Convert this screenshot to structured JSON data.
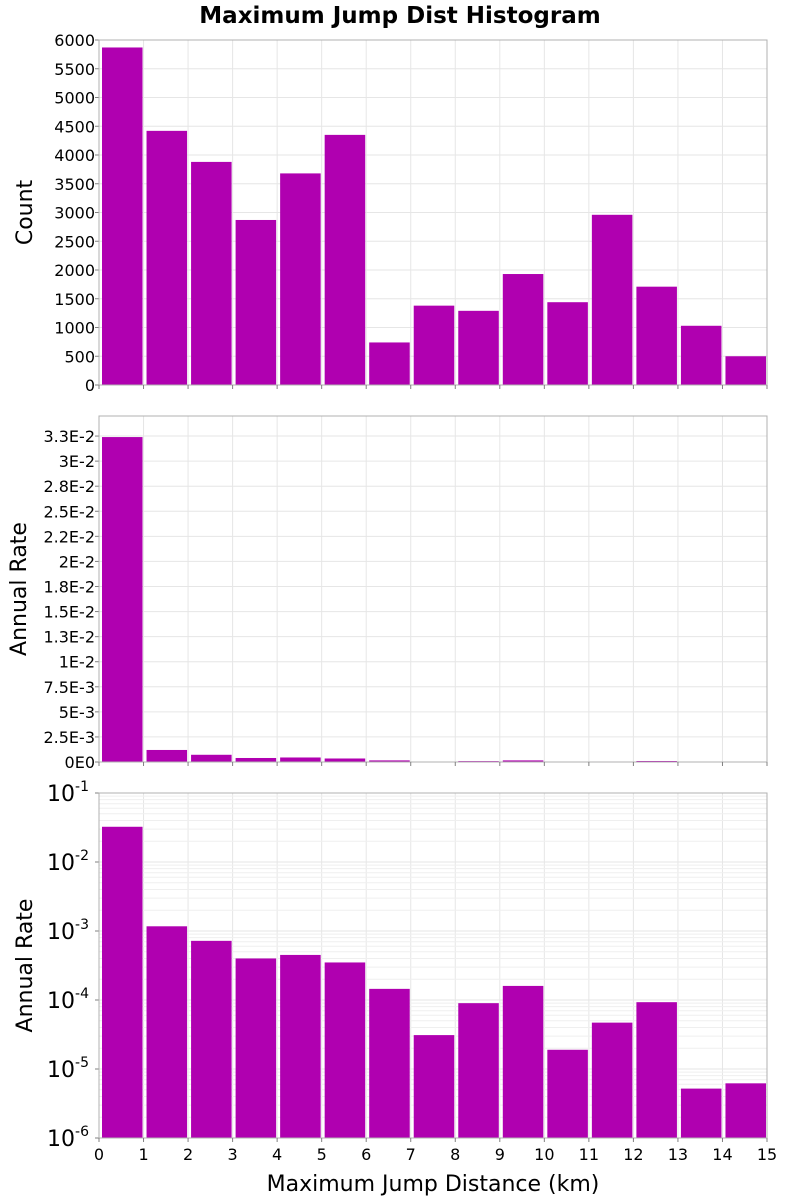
{
  "chart_data": {
    "title": "Maximum Jump Dist Histogram",
    "xlabel": "Maximum Jump Distance (km)",
    "bar_color": "#b000b0",
    "x_ticks": [
      "0",
      "1",
      "2",
      "3",
      "4",
      "5",
      "6",
      "7",
      "8",
      "9",
      "10",
      "11",
      "12",
      "13",
      "14",
      "15"
    ],
    "bin_starts_km": [
      0,
      1,
      2,
      3,
      4,
      5,
      6,
      7,
      8,
      9,
      10,
      11,
      12,
      13,
      14
    ],
    "bin_width_km": 1,
    "xlim": [
      0,
      15
    ],
    "grid": true,
    "panels": [
      {
        "type": "bar",
        "ylabel": "Count",
        "scale": "linear",
        "ylim": [
          0,
          6000
        ],
        "y_ticks": [
          {
            "value": 0,
            "label": "0"
          },
          {
            "value": 500,
            "label": "500"
          },
          {
            "value": 1000,
            "label": "1000"
          },
          {
            "value": 1500,
            "label": "1500"
          },
          {
            "value": 2000,
            "label": "2000"
          },
          {
            "value": 2500,
            "label": "2500"
          },
          {
            "value": 3000,
            "label": "3000"
          },
          {
            "value": 3500,
            "label": "3500"
          },
          {
            "value": 4000,
            "label": "4000"
          },
          {
            "value": 4500,
            "label": "4500"
          },
          {
            "value": 5000,
            "label": "5000"
          },
          {
            "value": 5500,
            "label": "5500"
          },
          {
            "value": 6000,
            "label": "6000"
          }
        ],
        "values": [
          5870,
          4420,
          3880,
          2870,
          3680,
          4350,
          740,
          1380,
          1290,
          1930,
          1440,
          2960,
          1710,
          1030,
          500
        ]
      },
      {
        "type": "bar",
        "ylabel": "Annual Rate",
        "scale": "linear",
        "ylim": [
          0,
          0.0345
        ],
        "y_ticks": [
          {
            "value": 0,
            "label": "0E0"
          },
          {
            "value": 0.0025,
            "label": "2.5E-3"
          },
          {
            "value": 0.005,
            "label": "5E-3"
          },
          {
            "value": 0.0075,
            "label": "7.5E-3"
          },
          {
            "value": 0.01,
            "label": "1E-2"
          },
          {
            "value": 0.0125,
            "label": "1.3E-2"
          },
          {
            "value": 0.015,
            "label": "1.5E-2"
          },
          {
            "value": 0.0175,
            "label": "1.8E-2"
          },
          {
            "value": 0.02,
            "label": "2E-2"
          },
          {
            "value": 0.0225,
            "label": "2.2E-2"
          },
          {
            "value": 0.025,
            "label": "2.5E-2"
          },
          {
            "value": 0.0275,
            "label": "2.8E-2"
          },
          {
            "value": 0.03,
            "label": "3E-2"
          },
          {
            "value": 0.0325,
            "label": "3.3E-2"
          }
        ],
        "values": [
          0.0324,
          0.0012,
          0.00072,
          0.0004,
          0.00045,
          0.00035,
          0.00016,
          3e-05,
          9e-05,
          0.00016,
          2e-05,
          5e-05,
          0.0001,
          5e-06,
          6e-06
        ]
      },
      {
        "type": "bar",
        "ylabel": "Annual Rate",
        "scale": "log",
        "ylim": [
          1e-06,
          0.1
        ],
        "y_ticks": [
          {
            "value": 1e-06,
            "base": "10",
            "exp": "-6"
          },
          {
            "value": 1e-05,
            "base": "10",
            "exp": "-5"
          },
          {
            "value": 0.0001,
            "base": "10",
            "exp": "-4"
          },
          {
            "value": 0.001,
            "base": "10",
            "exp": "-3"
          },
          {
            "value": 0.01,
            "base": "10",
            "exp": "-2"
          },
          {
            "value": 0.1,
            "base": "10",
            "exp": "-1"
          }
        ],
        "values": [
          0.0324,
          0.00117,
          0.00072,
          0.0004,
          0.00045,
          0.00035,
          0.000145,
          3.1e-05,
          9e-05,
          0.00016,
          1.9e-05,
          4.7e-05,
          9.3e-05,
          5.2e-06,
          6.2e-06
        ]
      }
    ]
  }
}
